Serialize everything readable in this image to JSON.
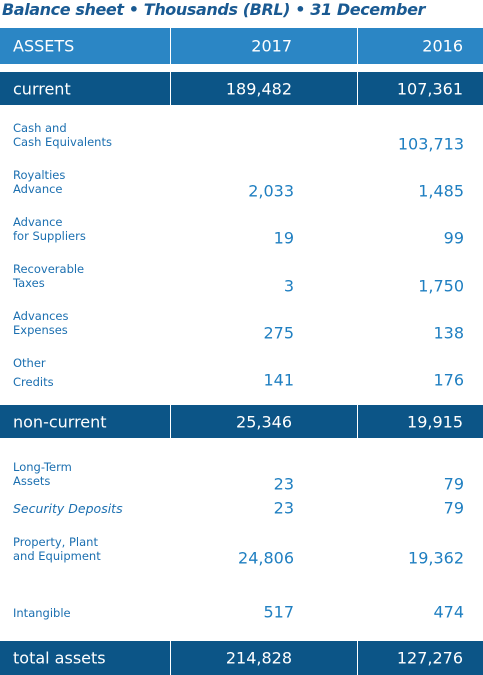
{
  "title": "Balance sheet • Thousands (BRL) • 31 December",
  "header": {
    "label": "ASSETS",
    "col1": "2017",
    "col2": "2016"
  },
  "current": {
    "label": "current",
    "values": [
      "189,482",
      "107,361"
    ]
  },
  "current_items": [
    {
      "lines": [
        "Cash and",
        "Cash Equivalents"
      ],
      "values": [
        null,
        "103,713"
      ]
    },
    {
      "lines": [
        "Royalties",
        "Advance"
      ],
      "values": [
        "2,033",
        "1,485"
      ]
    },
    {
      "lines": [
        "Advance",
        "for Suppliers"
      ],
      "values": [
        "19",
        "99"
      ]
    },
    {
      "lines": [
        "Recoverable",
        "Taxes"
      ],
      "values": [
        "3",
        "1,750"
      ]
    },
    {
      "lines": [
        "Advances",
        "Expenses"
      ],
      "values": [
        "275",
        "138"
      ]
    },
    {
      "lines": [
        "Other",
        "Credits"
      ],
      "values": [
        "141",
        "176"
      ]
    }
  ],
  "non_current": {
    "label": "non-current",
    "values": [
      "25,346",
      "19,915"
    ]
  },
  "non_current_items": [
    {
      "lines": [
        "Long-Term",
        "Assets"
      ],
      "values": [
        "23",
        "79"
      ]
    },
    {
      "lines": [
        "Security Deposits"
      ],
      "values": [
        "23",
        "79"
      ]
    },
    {
      "lines": [
        "Property, Plant",
        "and Equipment"
      ],
      "values": [
        "24,806",
        "19,362"
      ]
    },
    {
      "lines": [
        "Intangible"
      ],
      "values": [
        "517",
        "474"
      ]
    }
  ],
  "total": {
    "label": "total assets",
    "values": [
      "214,828",
      "127,276"
    ]
  }
}
